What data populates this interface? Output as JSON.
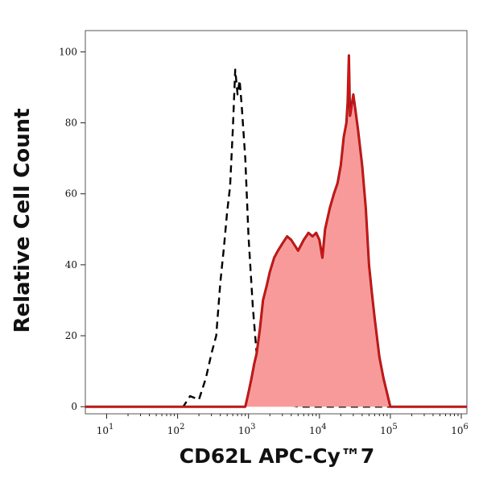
{
  "chart_data": {
    "type": "area",
    "title": "",
    "xlabel": "CD62L APC-Cy™7",
    "ylabel": "Relative Cell Count",
    "x_scale": "log",
    "xlim": [
      5,
      1200000
    ],
    "ylim": [
      -2,
      106
    ],
    "grid": false,
    "legend": "none",
    "x_ticks": [
      {
        "value": 10,
        "base": "10",
        "exp": "1"
      },
      {
        "value": 100,
        "base": "10",
        "exp": "2"
      },
      {
        "value": 1000,
        "base": "10",
        "exp": "3"
      },
      {
        "value": 10000,
        "base": "10",
        "exp": "4"
      },
      {
        "value": 100000,
        "base": "10",
        "exp": "5"
      },
      {
        "value": 1000000,
        "base": "10",
        "exp": "6"
      }
    ],
    "y_ticks": [
      {
        "value": 0,
        "label": "0"
      },
      {
        "value": 20,
        "label": "20"
      },
      {
        "value": 40,
        "label": "40"
      },
      {
        "value": 60,
        "label": "60"
      },
      {
        "value": 80,
        "label": "80"
      },
      {
        "value": 100,
        "label": "100"
      }
    ],
    "series": [
      {
        "style": "dashed-outline",
        "color": "#000000",
        "x": [
          5,
          120,
          150,
          200,
          250,
          300,
          350,
          400,
          450,
          500,
          550,
          600,
          650,
          700,
          750,
          800,
          900,
          1000,
          1150,
          1300,
          1500,
          1800,
          2200,
          3000,
          5000,
          20000,
          100000,
          1200000
        ],
        "y": [
          0,
          0,
          3,
          2,
          8,
          15,
          20,
          35,
          45,
          55,
          62,
          78,
          95,
          88,
          92,
          85,
          70,
          48,
          28,
          15,
          8,
          5,
          3,
          1,
          0,
          0,
          0,
          0
        ]
      },
      {
        "style": "filled",
        "fill": "#f99a9a",
        "line": "#e81010",
        "outline": "#8b1a1a",
        "x": [
          5,
          900,
          1000,
          1100,
          1200,
          1300,
          1450,
          1600,
          1800,
          2000,
          2300,
          2600,
          3000,
          3500,
          4000,
          5000,
          6000,
          7000,
          8000,
          9000,
          10000,
          11000,
          12000,
          14000,
          16000,
          18000,
          20000,
          22000,
          24000,
          25000,
          26000,
          27000,
          28000,
          30000,
          32000,
          35000,
          40000,
          45000,
          50000,
          55000,
          60000,
          70000,
          80000,
          100000,
          1200000
        ],
        "y": [
          0,
          0,
          4,
          8,
          12,
          15,
          22,
          30,
          34,
          38,
          42,
          44,
          46,
          48,
          47,
          44,
          47,
          49,
          48,
          49,
          47,
          42,
          50,
          56,
          60,
          63,
          68,
          76,
          80,
          86,
          99,
          82,
          84,
          88,
          84,
          78,
          68,
          56,
          40,
          32,
          25,
          14,
          8,
          0,
          0
        ]
      }
    ]
  }
}
